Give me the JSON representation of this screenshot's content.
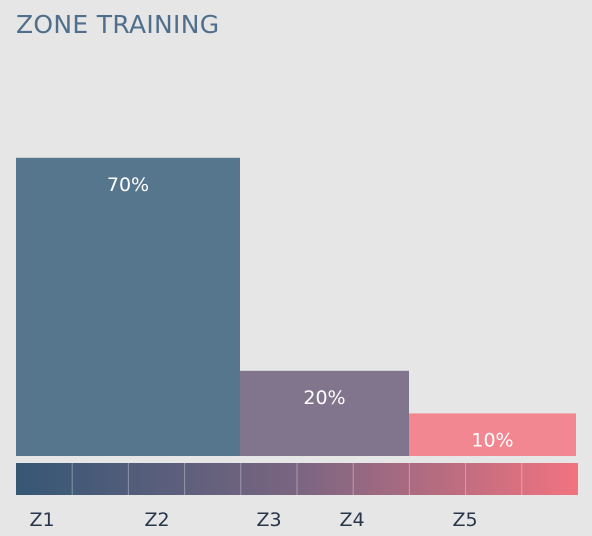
{
  "header": {
    "title": "ZONE TRAINING"
  },
  "chart_data": {
    "type": "bar",
    "title": "ZONE TRAINING",
    "xlabel": "",
    "ylabel": "",
    "ylim": [
      0,
      100
    ],
    "grid": false,
    "legend": "none",
    "series": [
      {
        "value": 70,
        "label": "70%",
        "zone_start": 1,
        "zone_end": 2,
        "color": "#56768e"
      },
      {
        "value": 20,
        "label": "20%",
        "zone_start": 3,
        "zone_end": 4,
        "color": "#81758d"
      },
      {
        "value": 10,
        "label": "10%",
        "zone_start": 5,
        "zone_end": 5,
        "color": "#f28791"
      }
    ],
    "zones": [
      "Z1",
      "Z2",
      "Z3",
      "Z4",
      "Z5"
    ],
    "gradient": {
      "segments": 10,
      "start_color": "#355775",
      "mid_color": "#7a6581",
      "end_color": "#f27380"
    }
  }
}
